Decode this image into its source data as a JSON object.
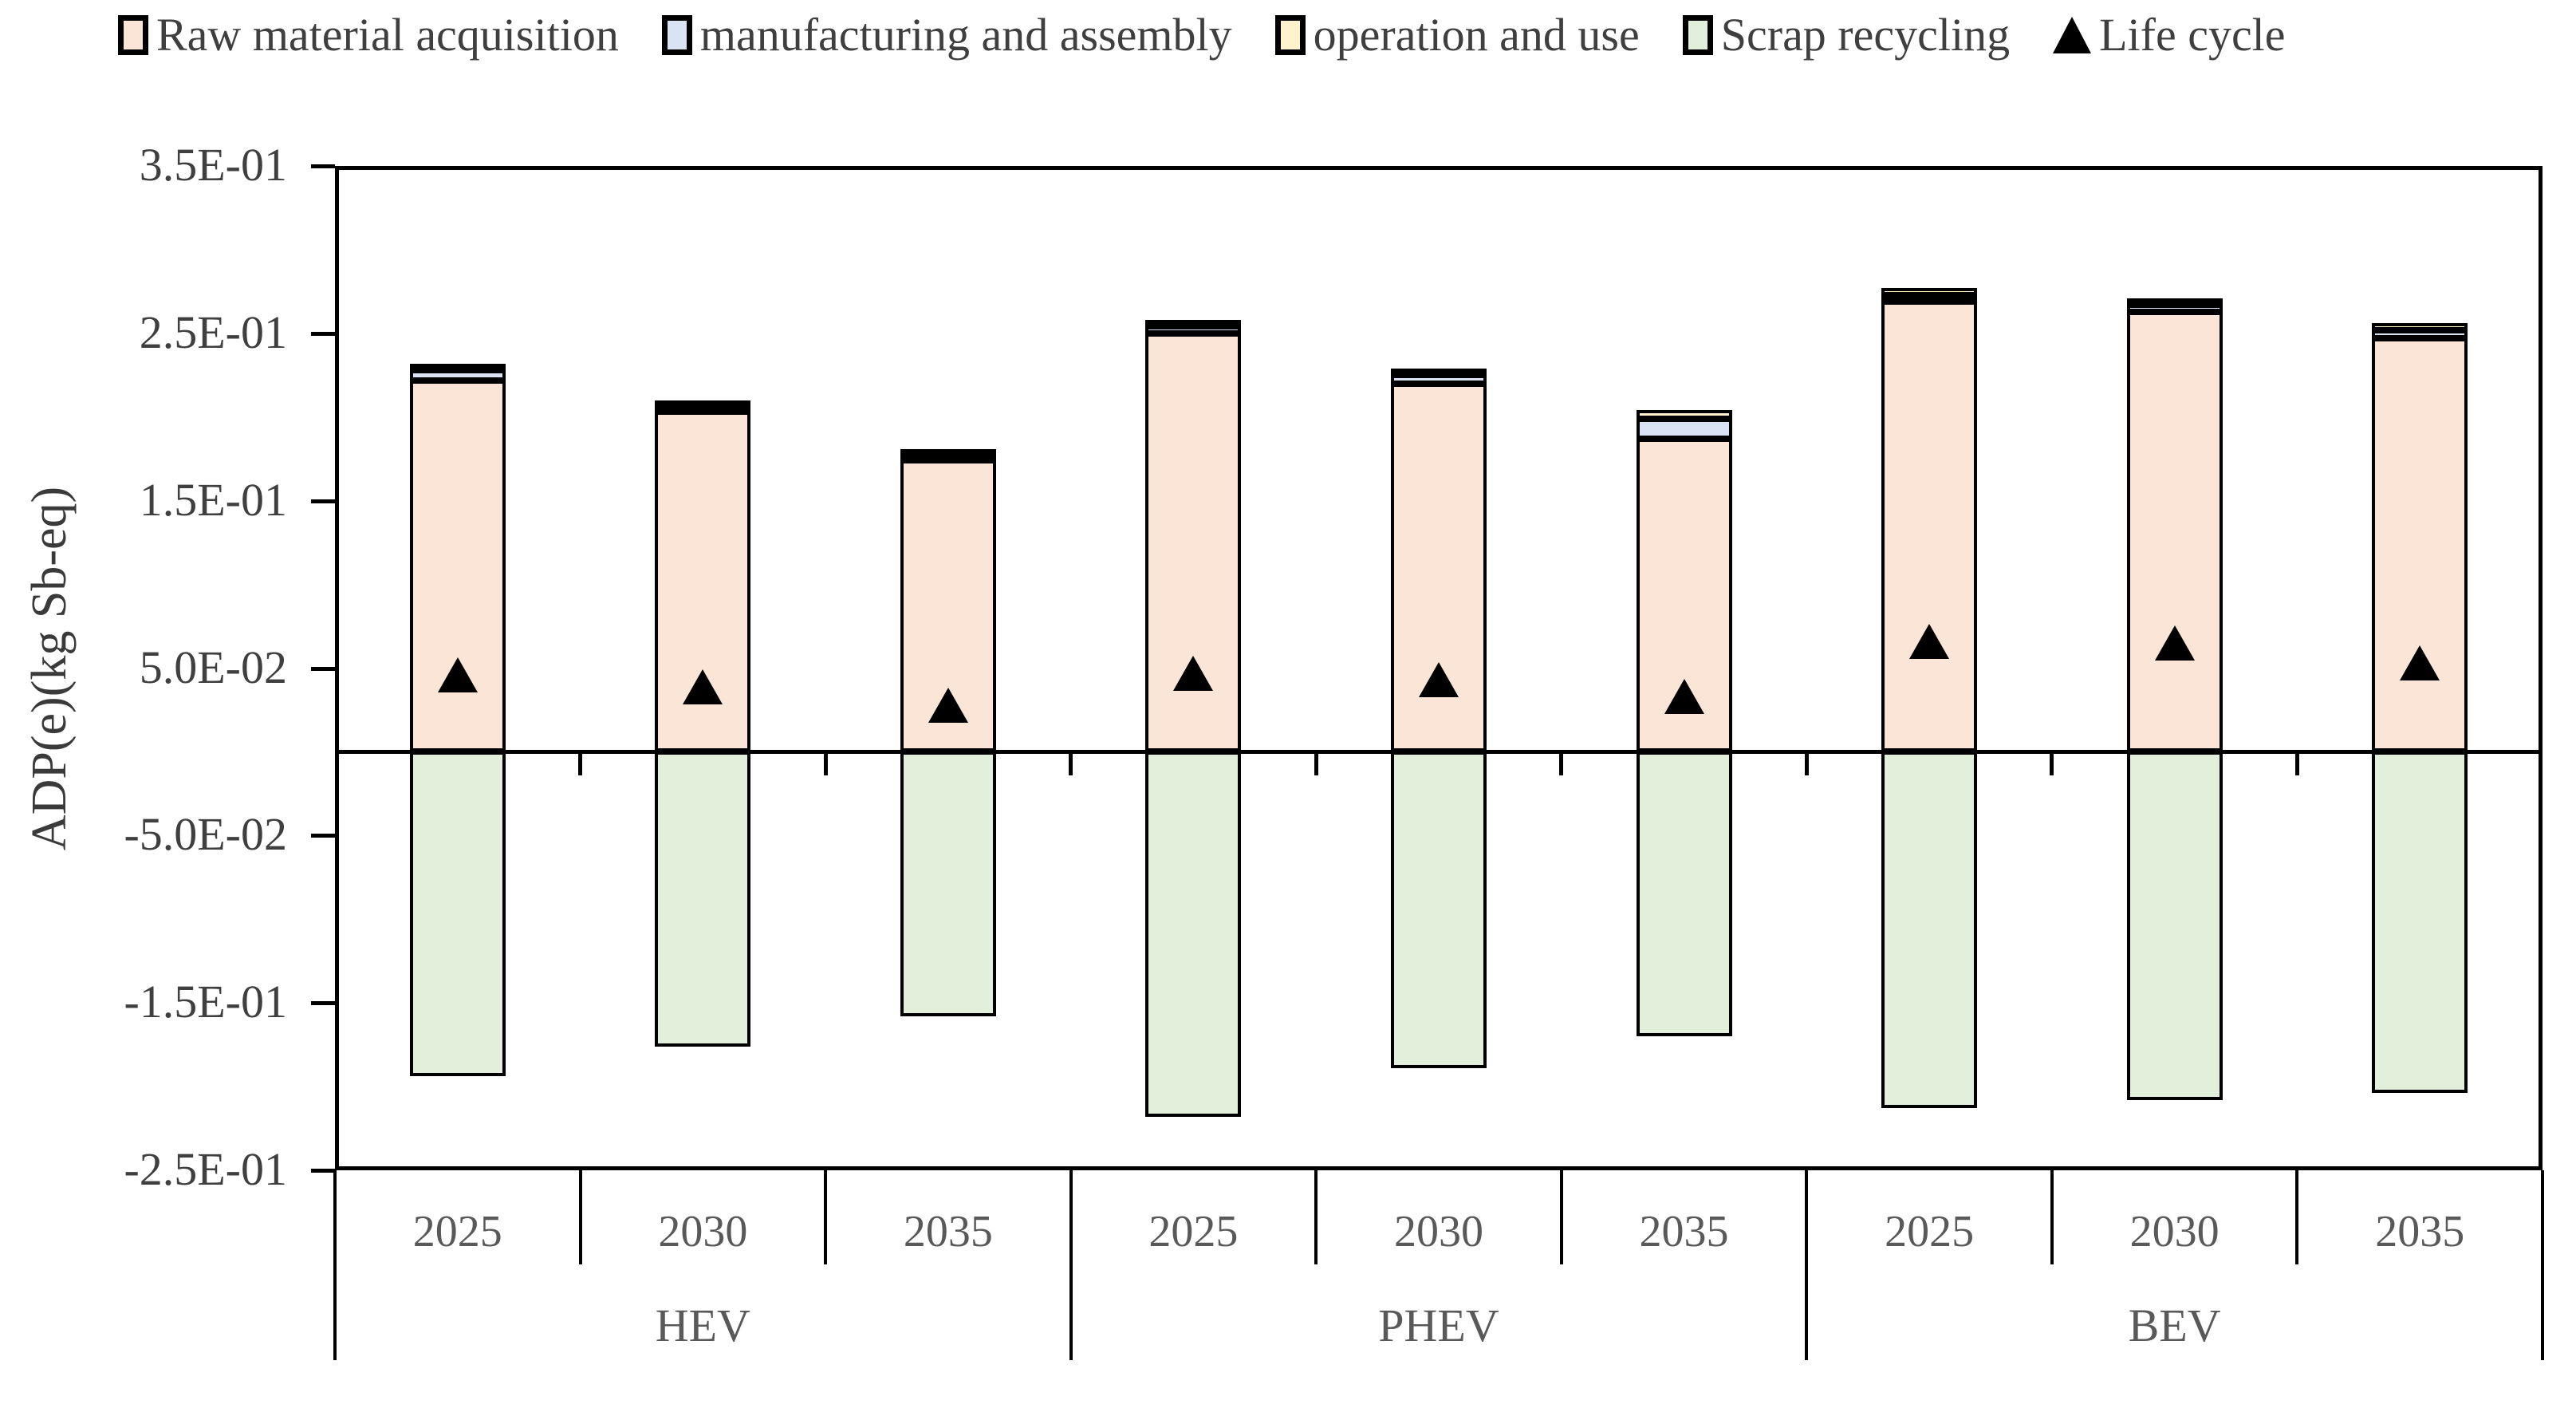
{
  "chart_data": {
    "type": "bar",
    "title": "",
    "ylabel": "ADP(e)(kg Sb-eq)",
    "ylim": [
      -0.25,
      0.35
    ],
    "grid": false,
    "legend_position": "top",
    "yticks": [
      {
        "value": 0.35,
        "label": "3.5E-01"
      },
      {
        "value": 0.25,
        "label": "2.5E-01"
      },
      {
        "value": 0.15,
        "label": "1.5E-01"
      },
      {
        "value": 0.05,
        "label": "5.0E-02"
      },
      {
        "value": -0.05,
        "label": "-5.0E-02"
      },
      {
        "value": -0.15,
        "label": "-1.5E-01"
      },
      {
        "value": -0.25,
        "label": "-2.5E-01"
      }
    ],
    "groups": [
      "HEV",
      "PHEV",
      "BEV"
    ],
    "categories": [
      "2025",
      "2030",
      "2035",
      "2025",
      "2030",
      "2035",
      "2025",
      "2030",
      "2035"
    ],
    "series": [
      {
        "name": "Raw material acquisition",
        "kind": "stacked-bar",
        "color": "#fbe5d6",
        "values": [
          0.222,
          0.203,
          0.174,
          0.25,
          0.22,
          0.187,
          0.269,
          0.263,
          0.247
        ]
      },
      {
        "name": "manufacturing and assembly",
        "kind": "stacked-bar",
        "color": "#dae3f3",
        "values": [
          0.006,
          0.003,
          0.003,
          0.004,
          0.005,
          0.012,
          0.004,
          0.004,
          0.005
        ]
      },
      {
        "name": "operation and use",
        "kind": "stacked-bar",
        "color": "#fff2cc",
        "values": [
          0.004,
          0.004,
          0.004,
          0.004,
          0.004,
          0.005,
          0.004,
          0.004,
          0.004
        ]
      },
      {
        "name": "Scrap recycling",
        "kind": "stacked-bar",
        "color": "#e2efda",
        "values": [
          -0.194,
          -0.176,
          -0.158,
          -0.218,
          -0.189,
          -0.17,
          -0.213,
          -0.208,
          -0.204
        ]
      },
      {
        "name": "Life cycle",
        "kind": "marker",
        "marker": "triangle",
        "color": "#000000",
        "values": [
          0.046,
          0.039,
          0.028,
          0.047,
          0.043,
          0.033,
          0.066,
          0.065,
          0.053
        ]
      }
    ],
    "colors": {
      "bar_border": "#000000",
      "axis": "#000000",
      "tick_text": "#3f3f3f",
      "category_text": "#595959",
      "background": "#ffffff"
    }
  }
}
